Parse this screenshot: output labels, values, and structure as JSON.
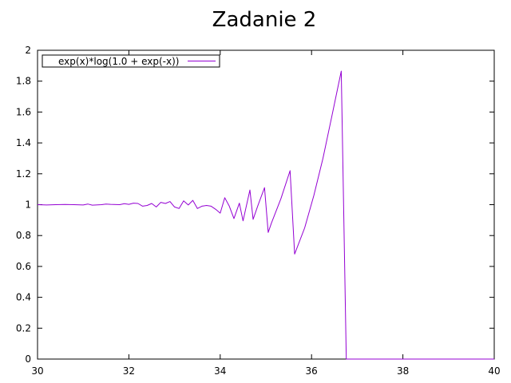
{
  "chart_data": {
    "type": "line",
    "title": "Zadanie 2",
    "xlabel": "",
    "ylabel": "",
    "xlim": [
      30,
      40
    ],
    "ylim": [
      0,
      2
    ],
    "xticks": [
      30,
      32,
      34,
      36,
      38,
      40
    ],
    "xtick_labels": [
      "30",
      "32",
      "34",
      "36",
      "38",
      "40"
    ],
    "yticks": [
      0,
      0.2,
      0.4,
      0.6,
      0.8,
      1,
      1.2,
      1.4,
      1.6,
      1.8,
      2
    ],
    "ytick_labels": [
      "0",
      "0.2",
      "0.4",
      "0.6",
      "0.8",
      "1",
      "1.2",
      "1.4",
      "1.6",
      "1.8",
      "2"
    ],
    "grid": false,
    "legend": {
      "position": "top-left"
    },
    "series": [
      {
        "name": "exp(x)*log(1.0 + exp(-x))",
        "color": "#9400d3",
        "x": [
          30.0,
          30.2,
          30.4,
          30.6,
          30.8,
          31.0,
          31.1,
          31.2,
          31.4,
          31.5,
          31.6,
          31.8,
          31.9,
          32.0,
          32.1,
          32.2,
          32.3,
          32.4,
          32.5,
          32.6,
          32.7,
          32.8,
          32.9,
          33.0,
          33.1,
          33.2,
          33.3,
          33.4,
          33.5,
          33.6,
          33.7,
          33.8,
          33.9,
          34.0,
          34.1,
          34.2,
          34.3,
          34.42,
          34.5,
          34.65,
          34.72,
          34.82,
          34.97,
          35.05,
          35.12,
          35.33,
          35.53,
          35.63,
          35.85,
          36.05,
          36.25,
          36.45,
          36.65,
          36.76,
          36.78,
          38.0,
          40.0
        ],
        "y": [
          1.0,
          0.998,
          1.0,
          1.001,
          1.0,
          0.998,
          1.004,
          0.997,
          1.0,
          1.004,
          1.002,
          1.0,
          1.006,
          1.002,
          1.01,
          1.008,
          0.99,
          0.995,
          1.008,
          0.985,
          1.015,
          1.008,
          1.02,
          0.985,
          0.975,
          1.025,
          0.998,
          1.028,
          0.975,
          0.99,
          0.995,
          0.99,
          0.97,
          0.945,
          1.045,
          0.99,
          0.91,
          1.01,
          0.895,
          1.095,
          0.905,
          0.99,
          1.11,
          0.82,
          0.88,
          1.04,
          1.22,
          0.68,
          0.85,
          1.06,
          1.3,
          1.58,
          1.865,
          0.0,
          0.0,
          0.0,
          0.0
        ]
      }
    ]
  }
}
